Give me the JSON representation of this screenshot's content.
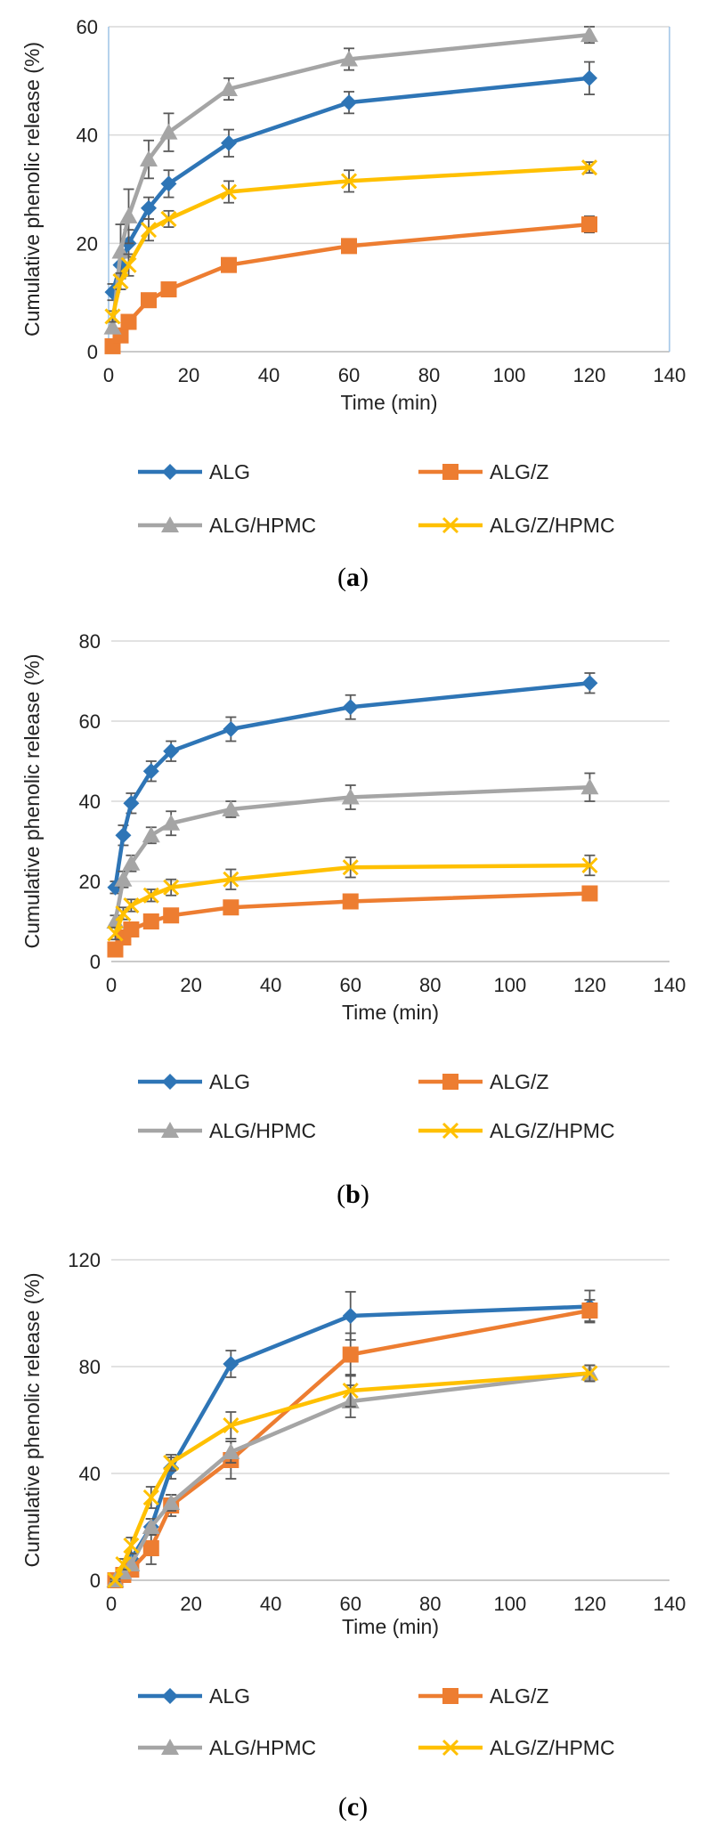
{
  "chart_data": [
    {
      "type": "line",
      "panel": "a",
      "caption": "a",
      "xlabel": "Time (min)",
      "ylabel": "Cumulative phenolic release (%)",
      "xlim": [
        0,
        140
      ],
      "ylim": [
        0,
        60
      ],
      "xticks": [
        0,
        20,
        40,
        60,
        80,
        100,
        120,
        140
      ],
      "yticks": [
        0,
        20,
        40,
        60
      ],
      "grid": "horizontal",
      "legend_position": "bottom",
      "x": [
        1,
        3,
        5,
        10,
        15,
        30,
        60,
        120
      ],
      "series": [
        {
          "name": "ALG",
          "color": "#2E75B6",
          "marker": "diamond",
          "values": [
            11,
            16,
            20,
            26.5,
            31,
            38.5,
            46,
            50.5
          ],
          "errors": [
            1.5,
            2,
            2.5,
            2,
            2.5,
            2.5,
            2,
            3
          ]
        },
        {
          "name": "ALG/Z",
          "color": "#ED7D31",
          "marker": "square",
          "values": [
            1,
            3,
            5.5,
            9.5,
            11.5,
            16,
            19.5,
            23.5
          ],
          "errors": [
            0.5,
            0.5,
            1,
            1,
            1,
            1,
            1,
            1.5
          ]
        },
        {
          "name": "ALG/HPMC",
          "color": "#A5A5A5",
          "marker": "triangle",
          "values": [
            4.5,
            18.5,
            25,
            35.5,
            40.5,
            48.5,
            54,
            58.5
          ],
          "errors": [
            1,
            5,
            5,
            3.5,
            3.5,
            2,
            2,
            1.5
          ]
        },
        {
          "name": "ALG/Z/HPMC",
          "color": "#FFC000",
          "marker": "x",
          "values": [
            6.5,
            13,
            16,
            22.5,
            24.5,
            29.5,
            31.5,
            34
          ],
          "errors": [
            1,
            1.5,
            2,
            2,
            1.5,
            2,
            2,
            1
          ]
        }
      ]
    },
    {
      "type": "line",
      "panel": "b",
      "caption": "b",
      "xlabel": "Time (min)",
      "ylabel": "Cumulative phenolic release (%)",
      "xlim": [
        0,
        140
      ],
      "ylim": [
        0,
        80
      ],
      "xticks": [
        0,
        20,
        40,
        60,
        80,
        100,
        120,
        140
      ],
      "yticks": [
        0,
        20,
        40,
        60,
        80
      ],
      "grid": "horizontal",
      "legend_position": "bottom",
      "x": [
        1,
        3,
        5,
        10,
        15,
        30,
        60,
        120
      ],
      "series": [
        {
          "name": "ALG",
          "color": "#2E75B6",
          "marker": "diamond",
          "values": [
            18.5,
            31.5,
            39.5,
            47.5,
            52.5,
            58,
            63.5,
            69.5
          ],
          "errors": [
            1.5,
            2.5,
            2.5,
            2.5,
            2.5,
            3,
            3,
            2.5
          ]
        },
        {
          "name": "ALG/Z",
          "color": "#ED7D31",
          "marker": "square",
          "values": [
            3,
            6,
            8,
            10,
            11.5,
            13.5,
            15,
            17
          ],
          "errors": [
            1,
            1,
            1,
            1,
            1,
            1,
            1,
            1
          ]
        },
        {
          "name": "ALG/HPMC",
          "color": "#A5A5A5",
          "marker": "triangle",
          "values": [
            10,
            20.5,
            24.5,
            31.5,
            34.5,
            38,
            41,
            43.5
          ],
          "errors": [
            1.5,
            2,
            2,
            2,
            3,
            2,
            3,
            3.5
          ]
        },
        {
          "name": "ALG/Z/HPMC",
          "color": "#FFC000",
          "marker": "x",
          "values": [
            7,
            12,
            14,
            16.5,
            18.5,
            20.5,
            23.5,
            24
          ],
          "errors": [
            1.5,
            1.5,
            1.5,
            1.5,
            2,
            2.5,
            2.5,
            2.5
          ]
        }
      ]
    },
    {
      "type": "line",
      "panel": "c",
      "caption": "c",
      "xlabel": "Time (min)",
      "ylabel": "Cumulative phenolic release (%)",
      "xlim": [
        0,
        140
      ],
      "ylim": [
        0,
        120
      ],
      "xticks": [
        0,
        20,
        40,
        60,
        80,
        100,
        120,
        140
      ],
      "yticks": [
        0,
        40,
        80,
        120
      ],
      "grid": "horizontal",
      "legend_position": "bottom",
      "x": [
        1,
        3,
        5,
        10,
        15,
        30,
        60,
        120
      ],
      "series": [
        {
          "name": "ALG",
          "color": "#2E75B6",
          "marker": "diamond",
          "values": [
            0,
            3,
            8,
            20,
            42,
            81,
            99,
            102.5
          ],
          "errors": [
            0.5,
            1,
            2,
            3,
            4,
            5,
            9,
            6
          ]
        },
        {
          "name": "ALG/Z",
          "color": "#ED7D31",
          "marker": "square",
          "values": [
            0,
            2,
            4,
            12,
            28,
            45,
            84.5,
            101
          ],
          "errors": [
            0.5,
            1,
            2,
            6,
            4,
            7,
            8,
            4
          ]
        },
        {
          "name": "ALG/HPMC",
          "color": "#A5A5A5",
          "marker": "triangle",
          "values": [
            0,
            3,
            6,
            20,
            29,
            48,
            67,
            77.5
          ],
          "errors": [
            0.5,
            1,
            2,
            3,
            3,
            4,
            6,
            3
          ]
        },
        {
          "name": "ALG/Z/HPMC",
          "color": "#FFC000",
          "marker": "x",
          "values": [
            0,
            6,
            13,
            31,
            44,
            58,
            71,
            77.5
          ],
          "errors": [
            0.5,
            2,
            3,
            4,
            3,
            5,
            6,
            3
          ]
        }
      ]
    }
  ]
}
